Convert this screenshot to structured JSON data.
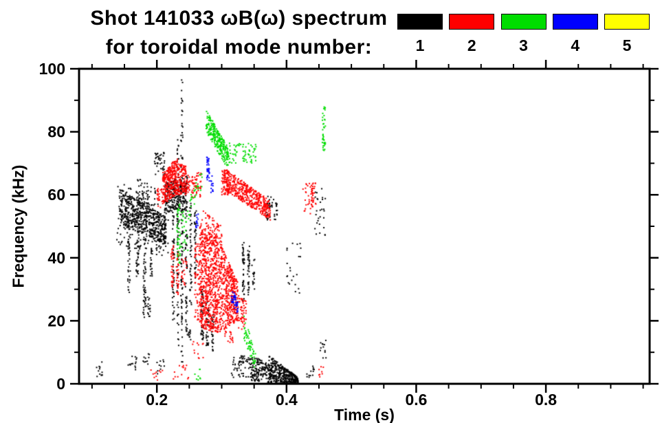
{
  "title": {
    "line1": "Shot 141033 ωB(ω) spectrum",
    "line2": "for toroidal mode number:"
  },
  "legend": {
    "modes": [
      {
        "label": "1",
        "color": "#000000"
      },
      {
        "label": "2",
        "color": "#ff0000"
      },
      {
        "label": "3",
        "color": "#00dd00"
      },
      {
        "label": "4",
        "color": "#0000ff"
      },
      {
        "label": "5",
        "color": "#ffff00"
      }
    ]
  },
  "axes": {
    "x": {
      "label": "Time (s)",
      "min": 0.08,
      "max": 0.96,
      "major_ticks": [
        0.2,
        0.4,
        0.6,
        0.8
      ],
      "minor_step": 0.05
    },
    "y": {
      "label": "Frequency (kHz)",
      "min": 0,
      "max": 100,
      "major_ticks": [
        0,
        20,
        40,
        60,
        80,
        100
      ],
      "minor_step": 10
    }
  },
  "chart_data": {
    "type": "scatter",
    "title": "Shot 141033 ωB(ω) spectrum for toroidal mode number",
    "xlabel": "Time (s)",
    "ylabel": "Frequency (kHz)",
    "xlim": [
      0.08,
      0.96
    ],
    "ylim": [
      0,
      100
    ],
    "grid": false,
    "legend_position": "top-right",
    "series": [
      {
        "name": "1",
        "color": "#000000",
        "clusters": [
          {
            "t": [
              0.107,
              0.116
            ],
            "f_lo": [
              2,
              2
            ],
            "f_hi": [
              7,
              7
            ],
            "n": 12
          },
          {
            "t": [
              0.142,
              0.214
            ],
            "f_lo": [
              51,
              44
            ],
            "f_hi": [
              62,
              53
            ],
            "n": 560
          },
          {
            "t": [
              0.138,
              0.218
            ],
            "f_lo": [
              44,
              40
            ],
            "f_hi": [
              65,
              56
            ],
            "n": 140
          },
          {
            "t": [
              0.168,
              0.198
            ],
            "f_lo": [
              58,
              54
            ],
            "f_hi": [
              66,
              62
            ],
            "n": 55
          },
          {
            "t": [
              0.155,
              0.159
            ],
            "f_lo": [
              27,
              27
            ],
            "f_hi": [
              52,
              52
            ],
            "n": 45
          },
          {
            "t": [
              0.168,
              0.172
            ],
            "f_lo": [
              32,
              32
            ],
            "f_hi": [
              50,
              50
            ],
            "n": 35
          },
          {
            "t": [
              0.179,
              0.183
            ],
            "f_lo": [
              24,
              24
            ],
            "f_hi": [
              46,
              46
            ],
            "n": 40
          },
          {
            "t": [
              0.19,
              0.193
            ],
            "f_lo": [
              34,
              34
            ],
            "f_hi": [
              48,
              48
            ],
            "n": 25
          },
          {
            "t": [
              0.178,
              0.19
            ],
            "f_lo": [
              20,
              20
            ],
            "f_hi": [
              28,
              28
            ],
            "n": 26
          },
          {
            "t": [
              0.155,
              0.17
            ],
            "f_lo": [
              4,
              4
            ],
            "f_hi": [
              9,
              9
            ],
            "n": 14
          },
          {
            "t": [
              0.178,
              0.192
            ],
            "f_lo": [
              6,
              6
            ],
            "f_hi": [
              10,
              10
            ],
            "n": 10
          },
          {
            "t": [
              0.2,
              0.212
            ],
            "f_lo": [
              3,
              3
            ],
            "f_hi": [
              8,
              8
            ],
            "n": 10
          },
          {
            "t": [
              0.196,
              0.212
            ],
            "f_lo": [
              66,
              66
            ],
            "f_hi": [
              74,
              74
            ],
            "n": 42
          },
          {
            "t": [
              0.212,
              0.246
            ],
            "f_lo": [
              54,
              55
            ],
            "f_hi": [
              64,
              66
            ],
            "n": 260
          },
          {
            "t": [
              0.224,
              0.227
            ],
            "f_lo": [
              20,
              20
            ],
            "f_hi": [
              62,
              62
            ],
            "n": 55
          },
          {
            "t": [
              0.231,
              0.234
            ],
            "f_lo": [
              12,
              12
            ],
            "f_hi": [
              78,
              78
            ],
            "n": 70
          },
          {
            "t": [
              0.237,
              0.24
            ],
            "f_lo": [
              5,
              5
            ],
            "f_hi": [
              97,
              97
            ],
            "n": 100
          },
          {
            "t": [
              0.244,
              0.247
            ],
            "f_lo": [
              16,
              16
            ],
            "f_hi": [
              66,
              66
            ],
            "n": 60
          },
          {
            "t": [
              0.251,
              0.254
            ],
            "f_lo": [
              24,
              24
            ],
            "f_hi": [
              58,
              58
            ],
            "n": 45
          },
          {
            "t": [
              0.258,
              0.261
            ],
            "f_lo": [
              30,
              30
            ],
            "f_hi": [
              55,
              55
            ],
            "n": 35
          },
          {
            "t": [
              0.247,
              0.253
            ],
            "f_lo": [
              14,
              14
            ],
            "f_hi": [
              18,
              18
            ],
            "n": 12
          },
          {
            "t": [
              0.268,
              0.272
            ],
            "f_lo": [
              14,
              14
            ],
            "f_hi": [
              30,
              30
            ],
            "n": 40
          },
          {
            "t": [
              0.276,
              0.28
            ],
            "f_lo": [
              12,
              12
            ],
            "f_hi": [
              26,
              26
            ],
            "n": 35
          },
          {
            "t": [
              0.284,
              0.288
            ],
            "f_lo": [
              10,
              10
            ],
            "f_hi": [
              22,
              22
            ],
            "n": 28
          },
          {
            "t": [
              0.332,
              0.335
            ],
            "f_lo": [
              26,
              26
            ],
            "f_hi": [
              45,
              45
            ],
            "n": 40
          },
          {
            "t": [
              0.34,
              0.343
            ],
            "f_lo": [
              28,
              28
            ],
            "f_hi": [
              44,
              44
            ],
            "n": 35
          },
          {
            "t": [
              0.346,
              0.351
            ],
            "f_lo": [
              30,
              30
            ],
            "f_hi": [
              40,
              40
            ],
            "n": 15
          },
          {
            "t": [
              0.315,
              0.345
            ],
            "f_lo": [
              2,
              2
            ],
            "f_hi": [
              9,
              9
            ],
            "n": 60
          },
          {
            "t": [
              0.345,
              0.377
            ],
            "f_lo": [
              1,
              0
            ],
            "f_hi": [
              9,
              6
            ],
            "n": 170
          },
          {
            "t": [
              0.373,
              0.418
            ],
            "f_lo": [
              0,
              0
            ],
            "f_hi": [
              9,
              2
            ],
            "n": 380
          },
          {
            "t": [
              0.368,
              0.387
            ],
            "f_lo": [
              52,
              52
            ],
            "f_hi": [
              60,
              60
            ],
            "n": 40
          },
          {
            "t": [
              0.4,
              0.422
            ],
            "f_lo": [
              28,
              28
            ],
            "f_hi": [
              45,
              45
            ],
            "n": 22
          },
          {
            "t": [
              0.443,
              0.46
            ],
            "f_lo": [
              45,
              45
            ],
            "f_hi": [
              62,
              62
            ],
            "n": 28
          },
          {
            "t": [
              0.452,
              0.462
            ],
            "f_lo": [
              8,
              8
            ],
            "f_hi": [
              14,
              14
            ],
            "n": 12
          },
          {
            "t": [
              0.43,
              0.444
            ],
            "f_lo": [
              1,
              1
            ],
            "f_hi": [
              6,
              6
            ],
            "n": 12
          }
        ]
      },
      {
        "name": "2",
        "color": "#ff0000",
        "clusters": [
          {
            "t": [
              0.2,
              0.209
            ],
            "f_lo": [
              56,
              56
            ],
            "f_hi": [
              62,
              62
            ],
            "n": 25
          },
          {
            "t": [
              0.209,
              0.232
            ],
            "f_lo": [
              57,
              60
            ],
            "f_hi": [
              67,
              72
            ],
            "n": 300
          },
          {
            "t": [
              0.232,
              0.246
            ],
            "f_lo": [
              60,
              60
            ],
            "f_hi": [
              70,
              70
            ],
            "n": 130
          },
          {
            "t": [
              0.246,
              0.268
            ],
            "f_lo": [
              59,
              59
            ],
            "f_hi": [
              67,
              67
            ],
            "n": 70
          },
          {
            "t": [
              0.222,
              0.226
            ],
            "f_lo": [
              30,
              30
            ],
            "f_hi": [
              44,
              44
            ],
            "n": 35
          },
          {
            "t": [
              0.23,
              0.234
            ],
            "f_lo": [
              28,
              28
            ],
            "f_hi": [
              42,
              42
            ],
            "n": 30
          },
          {
            "t": [
              0.238,
              0.246
            ],
            "f_lo": [
              30,
              30
            ],
            "f_hi": [
              40,
              40
            ],
            "n": 20
          },
          {
            "t": [
              0.258,
              0.266
            ],
            "f_lo": [
              20,
              20
            ],
            "f_hi": [
              45,
              45
            ],
            "n": 60
          },
          {
            "t": [
              0.266,
              0.295
            ],
            "f_lo": [
              18,
              16
            ],
            "f_hi": [
              50,
              46
            ],
            "n": 650
          },
          {
            "t": [
              0.295,
              0.325
            ],
            "f_lo": [
              16,
              20
            ],
            "f_hi": [
              46,
              32
            ],
            "n": 460
          },
          {
            "t": [
              0.268,
              0.3
            ],
            "f_lo": [
              46,
              44
            ],
            "f_hi": [
              56,
              50
            ],
            "n": 80
          },
          {
            "t": [
              0.325,
              0.338
            ],
            "f_lo": [
              17,
              17
            ],
            "f_hi": [
              28,
              28
            ],
            "n": 55
          },
          {
            "t": [
              0.3,
              0.312
            ],
            "f_lo": [
              60,
              60
            ],
            "f_hi": [
              68,
              68
            ],
            "n": 90
          },
          {
            "t": [
              0.308,
              0.375
            ],
            "f_lo": [
              61,
              52
            ],
            "f_hi": [
              68,
              58
            ],
            "n": 420
          },
          {
            "t": [
              0.425,
              0.447
            ],
            "f_lo": [
              54,
              54
            ],
            "f_hi": [
              64,
              64
            ],
            "n": 40
          },
          {
            "t": [
              0.438,
              0.441
            ],
            "f_lo": [
              56,
              56
            ],
            "f_hi": [
              64,
              64
            ],
            "n": 18
          },
          {
            "t": [
              0.19,
              0.21
            ],
            "f_lo": [
              1,
              1
            ],
            "f_hi": [
              5,
              5
            ],
            "n": 10
          },
          {
            "t": [
              0.225,
              0.25
            ],
            "f_lo": [
              1,
              1
            ],
            "f_hi": [
              6,
              6
            ],
            "n": 14
          },
          {
            "t": [
              0.255,
              0.272
            ],
            "f_lo": [
              8,
              8
            ],
            "f_hi": [
              14,
              14
            ],
            "n": 12
          },
          {
            "t": [
              0.305,
              0.318
            ],
            "f_lo": [
              13,
              13
            ],
            "f_hi": [
              17,
              17
            ],
            "n": 18
          },
          {
            "t": [
              0.45,
              0.458
            ],
            "f_lo": [
              2,
              2
            ],
            "f_hi": [
              6,
              6
            ],
            "n": 8
          }
        ]
      },
      {
        "name": "3",
        "color": "#00dd00",
        "clusters": [
          {
            "t": [
              0.276,
              0.31
            ],
            "f_lo": [
              80,
              68
            ],
            "f_hi": [
              87,
              75
            ],
            "n": 260
          },
          {
            "t": [
              0.31,
              0.356
            ],
            "f_lo": [
              70,
              70
            ],
            "f_hi": [
              77,
              76
            ],
            "n": 70
          },
          {
            "t": [
              0.231,
              0.236
            ],
            "f_lo": [
              38,
              38
            ],
            "f_hi": [
              57,
              57
            ],
            "n": 45
          },
          {
            "t": [
              0.238,
              0.248
            ],
            "f_lo": [
              42,
              42
            ],
            "f_hi": [
              55,
              55
            ],
            "n": 22
          },
          {
            "t": [
              0.248,
              0.27
            ],
            "f_lo": [
              52,
              62
            ],
            "f_hi": [
              58,
              70
            ],
            "n": 30
          },
          {
            "t": [
              0.334,
              0.352
            ],
            "f_lo": [
              14,
              4
            ],
            "f_hi": [
              22,
              10
            ],
            "n": 60
          },
          {
            "t": [
              0.455,
              0.46
            ],
            "f_lo": [
              74,
              74
            ],
            "f_hi": [
              88,
              88
            ],
            "n": 40
          },
          {
            "t": [
              0.255,
              0.268
            ],
            "f_lo": [
              1,
              1
            ],
            "f_hi": [
              5,
              5
            ],
            "n": 8
          }
        ]
      },
      {
        "name": "4",
        "color": "#0000ff",
        "clusters": [
          {
            "t": [
              0.277,
              0.281
            ],
            "f_lo": [
              64,
              64
            ],
            "f_hi": [
              72,
              72
            ],
            "n": 35
          },
          {
            "t": [
              0.283,
              0.287
            ],
            "f_lo": [
              60,
              60
            ],
            "f_hi": [
              66,
              66
            ],
            "n": 12
          },
          {
            "t": [
              0.315,
              0.325
            ],
            "f_lo": [
              26,
              22
            ],
            "f_hi": [
              31,
              26
            ],
            "n": 40
          },
          {
            "t": [
              0.26,
              0.264
            ],
            "f_lo": [
              49,
              49
            ],
            "f_hi": [
              54,
              54
            ],
            "n": 12
          }
        ]
      },
      {
        "name": "5",
        "color": "#ffff00",
        "clusters": []
      }
    ]
  }
}
